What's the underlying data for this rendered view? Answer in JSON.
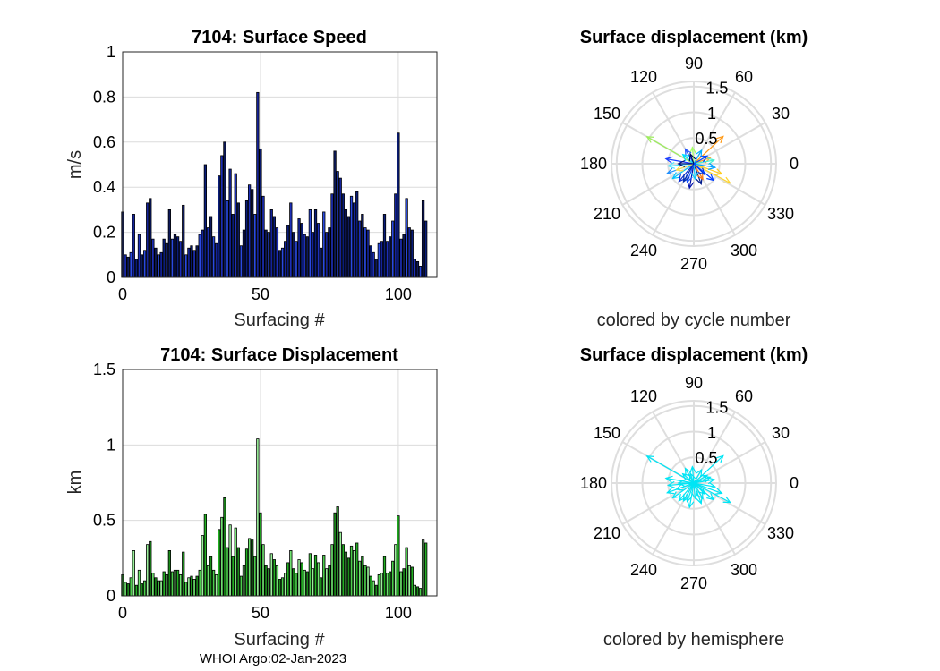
{
  "footer": "WHOI Argo:02-Jan-2023",
  "chart_data": [
    {
      "type": "bar",
      "title": "7104: Surface Speed",
      "xlabel": "Surfacing #",
      "ylabel": "m/s",
      "xlim": [
        0,
        114
      ],
      "ylim": [
        0,
        1
      ],
      "xticks": [
        "0",
        "50",
        "100"
      ],
      "yticks": [
        "0",
        "0.2",
        "0.4",
        "0.6",
        "0.8",
        "1"
      ],
      "colors": [
        "#0a1d7a",
        "#1d2fb8",
        "#0e1a5c",
        "#2a4ae0",
        "#14239a"
      ],
      "values": [
        0.29,
        0.1,
        0.09,
        0.11,
        0.28,
        0.08,
        0.19,
        0.1,
        0.12,
        0.33,
        0.35,
        0.17,
        0.13,
        0.1,
        0.11,
        0.17,
        0.15,
        0.3,
        0.17,
        0.19,
        0.18,
        0.16,
        0.32,
        0.1,
        0.13,
        0.14,
        0.12,
        0.14,
        0.19,
        0.21,
        0.5,
        0.22,
        0.27,
        0.18,
        0.15,
        0.45,
        0.54,
        0.6,
        0.34,
        0.48,
        0.28,
        0.46,
        0.33,
        0.14,
        0.21,
        0.34,
        0.41,
        0.39,
        0.28,
        0.82,
        0.57,
        0.36,
        0.21,
        0.2,
        0.3,
        0.27,
        0.22,
        0.12,
        0.13,
        0.16,
        0.23,
        0.33,
        0.2,
        0.16,
        0.26,
        0.24,
        0.19,
        0.18,
        0.3,
        0.2,
        0.3,
        0.24,
        0.13,
        0.29,
        0.2,
        0.22,
        0.37,
        0.56,
        0.47,
        0.44,
        0.37,
        0.3,
        0.27,
        0.36,
        0.33,
        0.38,
        0.25,
        0.28,
        0.22,
        0.21,
        0.14,
        0.11,
        0.08,
        0.15,
        0.16,
        0.28,
        0.16,
        0.18,
        0.25,
        0.37,
        0.64,
        0.17,
        0.19,
        0.35,
        0.22,
        0.21,
        0.08,
        0.07,
        0.05,
        0.34,
        0.25
      ]
    },
    {
      "type": "bar",
      "title": "7104: Surface Displacement",
      "xlabel": "Surfacing #",
      "ylabel": "km",
      "xlim": [
        0,
        114
      ],
      "ylim": [
        0,
        1.5
      ],
      "xticks": [
        "0",
        "50",
        "100"
      ],
      "yticks": [
        "0",
        "0.5",
        "1",
        "1.5"
      ],
      "colors": [
        "#22b022",
        "#6fe36f",
        "#1a8a1a",
        "#4ccf4c",
        "#9af09a"
      ],
      "values": [
        0.14,
        0.09,
        0.08,
        0.12,
        0.3,
        0.07,
        0.17,
        0.08,
        0.1,
        0.34,
        0.36,
        0.15,
        0.12,
        0.1,
        0.1,
        0.16,
        0.14,
        0.3,
        0.16,
        0.17,
        0.17,
        0.14,
        0.29,
        0.09,
        0.12,
        0.13,
        0.11,
        0.13,
        0.17,
        0.4,
        0.54,
        0.2,
        0.26,
        0.17,
        0.14,
        0.44,
        0.52,
        0.65,
        0.32,
        0.47,
        0.26,
        0.45,
        0.32,
        0.13,
        0.2,
        0.31,
        0.38,
        0.37,
        0.26,
        1.04,
        0.55,
        0.34,
        0.2,
        0.18,
        0.28,
        0.24,
        0.2,
        0.11,
        0.12,
        0.15,
        0.22,
        0.3,
        0.18,
        0.15,
        0.24,
        0.22,
        0.17,
        0.16,
        0.28,
        0.18,
        0.27,
        0.22,
        0.12,
        0.27,
        0.18,
        0.2,
        0.34,
        0.55,
        0.59,
        0.42,
        0.34,
        0.29,
        0.25,
        0.33,
        0.3,
        0.35,
        0.23,
        0.26,
        0.2,
        0.19,
        0.13,
        0.1,
        0.07,
        0.14,
        0.15,
        0.26,
        0.15,
        0.16,
        0.23,
        0.34,
        0.53,
        0.16,
        0.18,
        0.32,
        0.2,
        0.19,
        0.07,
        0.06,
        0.05,
        0.37,
        0.35
      ]
    },
    {
      "type": "polar-arrows",
      "title": "Surface displacement (km)",
      "caption": "colored by cycle number",
      "rticks": [
        "0.5",
        "1",
        "1.5"
      ],
      "angle_labels": [
        "0",
        "30",
        "60",
        "90",
        "120",
        "150",
        "180",
        "210",
        "240",
        "270",
        "300",
        "330"
      ],
      "rmax": 1.6,
      "arrows": [
        {
          "angle": 150,
          "r": 1.05,
          "color": "#9cee5a"
        },
        {
          "angle": 43,
          "r": 0.78,
          "color": "#ff9a18"
        },
        {
          "angle": 332,
          "r": 0.8,
          "color": "#ffd52a"
        },
        {
          "angle": 340,
          "r": 0.58,
          "color": "#ffcc1e"
        },
        {
          "angle": 200,
          "r": 0.55,
          "color": "#1f8fff"
        },
        {
          "angle": 215,
          "r": 0.5,
          "color": "#00c2ff"
        },
        {
          "angle": 95,
          "r": 0.32,
          "color": "#a0ff60"
        },
        {
          "angle": 260,
          "r": 0.48,
          "color": "#0011aa"
        },
        {
          "angle": 290,
          "r": 0.42,
          "color": "#001a8a"
        },
        {
          "angle": 250,
          "r": 0.38,
          "color": "#1a56ff"
        },
        {
          "angle": 170,
          "r": 0.55,
          "color": "#1a3cff"
        },
        {
          "angle": 185,
          "r": 0.5,
          "color": "#50e8ff"
        },
        {
          "angle": 230,
          "r": 0.45,
          "color": "#0a2bd1"
        },
        {
          "angle": 300,
          "r": 0.35,
          "color": "#ff7a14"
        },
        {
          "angle": 20,
          "r": 0.34,
          "color": "#ff9f2a"
        },
        {
          "angle": 10,
          "r": 0.4,
          "color": "#45f0d0"
        },
        {
          "angle": 60,
          "r": 0.3,
          "color": "#00b0ff"
        },
        {
          "angle": 120,
          "r": 0.33,
          "color": "#2255ff"
        },
        {
          "angle": 140,
          "r": 0.28,
          "color": "#00e0ff"
        },
        {
          "angle": 315,
          "r": 0.3,
          "color": "#0033dd"
        },
        {
          "angle": 275,
          "r": 0.3,
          "color": "#08c8ff"
        },
        {
          "angle": 200,
          "r": 0.36,
          "color": "#ffe04a"
        },
        {
          "angle": 350,
          "r": 0.42,
          "color": "#00a0ff"
        },
        {
          "angle": 240,
          "r": 0.4,
          "color": "#002cb0"
        },
        {
          "angle": 320,
          "r": 0.5,
          "color": "#003dff"
        },
        {
          "angle": 180,
          "r": 0.3,
          "color": "#000f7a"
        },
        {
          "angle": 110,
          "r": 0.2,
          "color": "#000a60"
        },
        {
          "angle": 30,
          "r": 0.3,
          "color": "#0044ff"
        }
      ]
    },
    {
      "type": "polar-arrows",
      "title": "Surface displacement (km)",
      "caption": "colored by hemisphere",
      "rticks": [
        "0.5",
        "1",
        "1.5"
      ],
      "angle_labels": [
        "0",
        "30",
        "60",
        "90",
        "120",
        "150",
        "180",
        "210",
        "240",
        "270",
        "300",
        "330"
      ],
      "rmax": 1.6,
      "arrow_color": "#00e5f5",
      "arrows": [
        {
          "angle": 150,
          "r": 1.05
        },
        {
          "angle": 43,
          "r": 0.78
        },
        {
          "angle": 332,
          "r": 0.8
        },
        {
          "angle": 340,
          "r": 0.58
        },
        {
          "angle": 200,
          "r": 0.55
        },
        {
          "angle": 215,
          "r": 0.5
        },
        {
          "angle": 95,
          "r": 0.32
        },
        {
          "angle": 260,
          "r": 0.48
        },
        {
          "angle": 290,
          "r": 0.42
        },
        {
          "angle": 250,
          "r": 0.38
        },
        {
          "angle": 170,
          "r": 0.55
        },
        {
          "angle": 185,
          "r": 0.5
        },
        {
          "angle": 230,
          "r": 0.45
        },
        {
          "angle": 300,
          "r": 0.35
        },
        {
          "angle": 20,
          "r": 0.34
        },
        {
          "angle": 10,
          "r": 0.4
        },
        {
          "angle": 60,
          "r": 0.3
        },
        {
          "angle": 120,
          "r": 0.33
        },
        {
          "angle": 140,
          "r": 0.28
        },
        {
          "angle": 315,
          "r": 0.3
        },
        {
          "angle": 275,
          "r": 0.3
        },
        {
          "angle": 200,
          "r": 0.36
        },
        {
          "angle": 350,
          "r": 0.42
        },
        {
          "angle": 240,
          "r": 0.4
        },
        {
          "angle": 320,
          "r": 0.5
        },
        {
          "angle": 180,
          "r": 0.3
        },
        {
          "angle": 110,
          "r": 0.2
        },
        {
          "angle": 30,
          "r": 0.3
        }
      ]
    }
  ]
}
